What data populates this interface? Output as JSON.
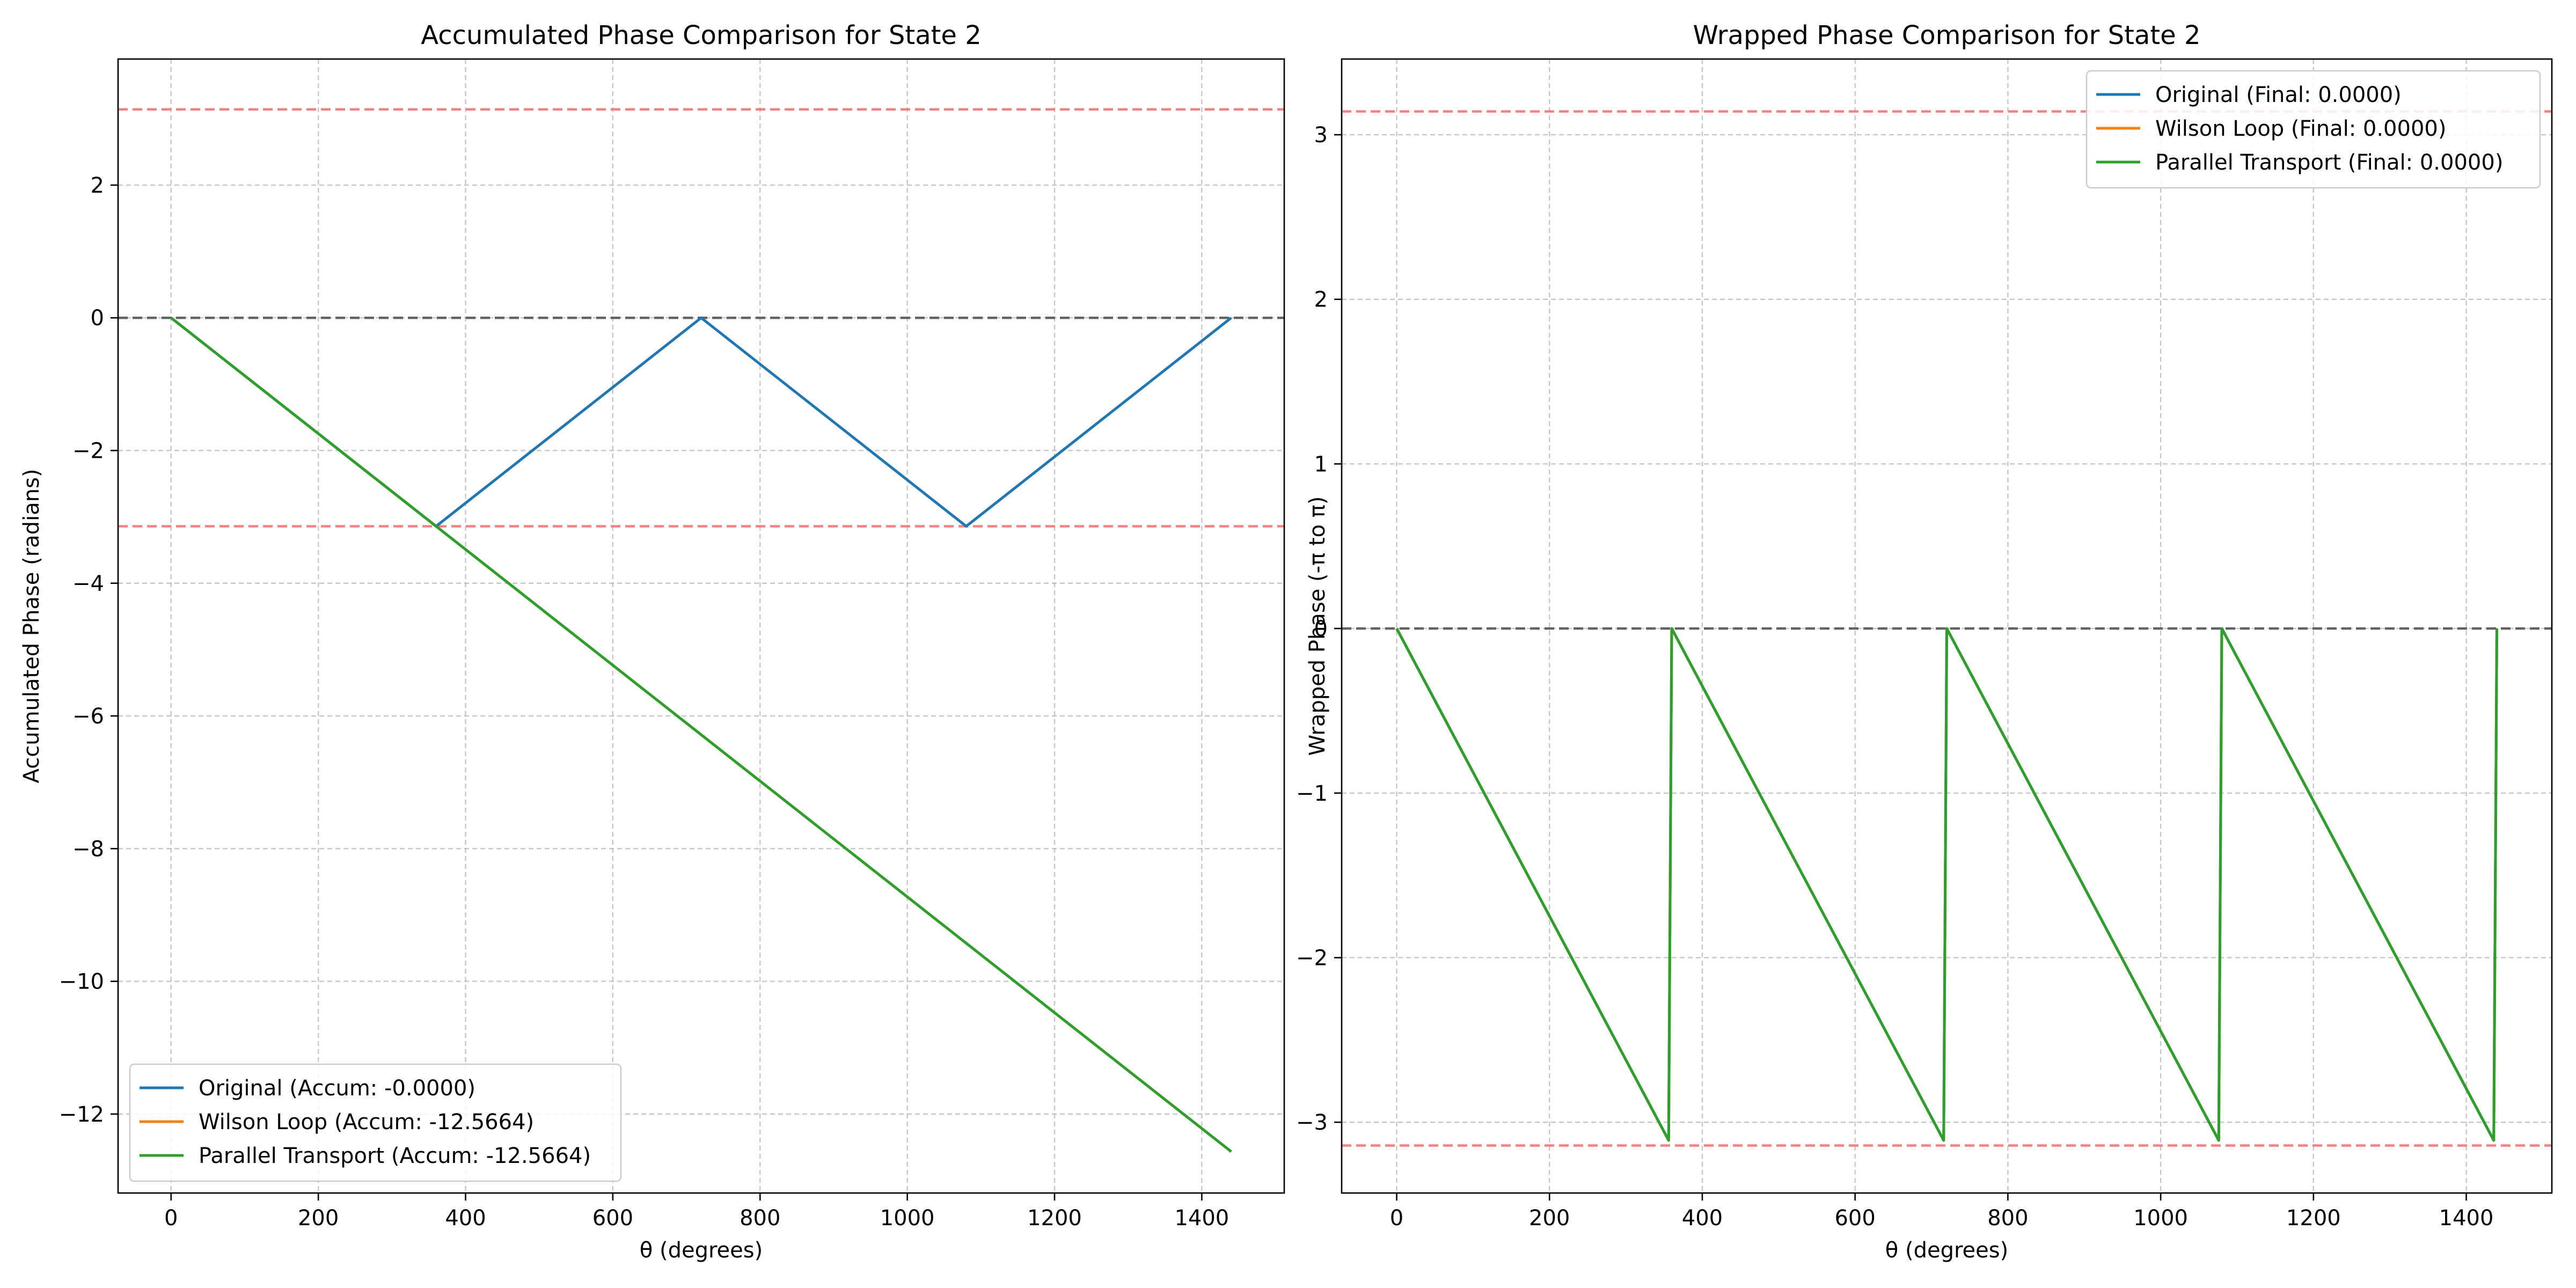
{
  "chart_data": [
    {
      "type": "line",
      "title": "Accumulated Phase Comparison for State 2",
      "xlabel": "θ (degrees)",
      "ylabel": "Accumulated Phase (radians)",
      "xlim": [
        -72,
        1512
      ],
      "ylim": [
        -13.19,
        3.9
      ],
      "xticks": [
        0,
        200,
        400,
        600,
        800,
        1000,
        1200,
        1400
      ],
      "xtick_labels": [
        "0",
        "200",
        "400",
        "600",
        "800",
        "1000",
        "1200",
        "1400"
      ],
      "yticks": [
        2,
        0,
        -2,
        -4,
        -6,
        -8,
        -10,
        -12
      ],
      "ytick_labels": [
        "2",
        "0",
        "−2",
        "−4",
        "−6",
        "−8",
        "−10",
        "−12"
      ],
      "grid": true,
      "legend_position": "lower-left",
      "reference_lines": [
        {
          "y": 3.14159,
          "color": "#ff6b6b",
          "style": "dashed"
        },
        {
          "y": -3.14159,
          "color": "#ff6b6b",
          "style": "dashed"
        },
        {
          "y": 0,
          "color": "#555555",
          "style": "dashed"
        }
      ],
      "series": [
        {
          "name": "Original (Accum: -0.0000)",
          "color": "#1f77b4",
          "x": [
            0,
            360,
            720,
            1080,
            1440
          ],
          "y": [
            0,
            -3.1416,
            0,
            -3.1416,
            0
          ]
        },
        {
          "name": "Wilson Loop (Accum: -12.5664)",
          "color": "#ff7f0e",
          "x": [
            0,
            1440
          ],
          "y": [
            0,
            -12.5664
          ]
        },
        {
          "name": "Parallel Transport (Accum: -12.5664)",
          "color": "#2ca02c",
          "x": [
            0,
            1440
          ],
          "y": [
            0,
            -12.5664
          ]
        }
      ]
    },
    {
      "type": "line",
      "title": "Wrapped Phase Comparison for State 2",
      "xlabel": "θ (degrees)",
      "ylabel": "Wrapped Phase (-π to π)",
      "xlim": [
        -72,
        1512
      ],
      "ylim": [
        -3.43,
        3.46
      ],
      "xticks": [
        0,
        200,
        400,
        600,
        800,
        1000,
        1200,
        1400
      ],
      "xtick_labels": [
        "0",
        "200",
        "400",
        "600",
        "800",
        "1000",
        "1200",
        "1400"
      ],
      "yticks": [
        3,
        2,
        1,
        0,
        -1,
        -2,
        -3
      ],
      "ytick_labels": [
        "3",
        "2",
        "1",
        "0",
        "−1",
        "−2",
        "−3"
      ],
      "grid": true,
      "legend_position": "upper-right",
      "reference_lines": [
        {
          "y": 3.14159,
          "color": "#ff6b6b",
          "style": "dashed"
        },
        {
          "y": -3.14159,
          "color": "#ff6b6b",
          "style": "dashed"
        },
        {
          "y": 0,
          "color": "#555555",
          "style": "dashed"
        }
      ],
      "series": [
        {
          "name": "Original (Final: 0.0000)",
          "color": "#1f77b4",
          "x": [
            0,
            356,
            360,
            716,
            720,
            1076,
            1080,
            1436,
            1440
          ],
          "y": [
            0,
            -3.11,
            0,
            -3.11,
            0,
            -3.11,
            0,
            -3.11,
            0
          ]
        },
        {
          "name": "Wilson Loop (Final: 0.0000)",
          "color": "#ff7f0e",
          "x": [
            0,
            356,
            360,
            716,
            720,
            1076,
            1080,
            1436,
            1440
          ],
          "y": [
            0,
            -3.11,
            0,
            -3.11,
            0,
            -3.11,
            0,
            -3.11,
            0
          ]
        },
        {
          "name": "Parallel Transport (Final: 0.0000)",
          "color": "#2ca02c",
          "x": [
            0,
            356,
            360,
            716,
            720,
            1076,
            1080,
            1436,
            1440
          ],
          "y": [
            0,
            -3.11,
            0,
            -3.11,
            0,
            -3.11,
            0,
            -3.11,
            0
          ]
        }
      ]
    }
  ]
}
